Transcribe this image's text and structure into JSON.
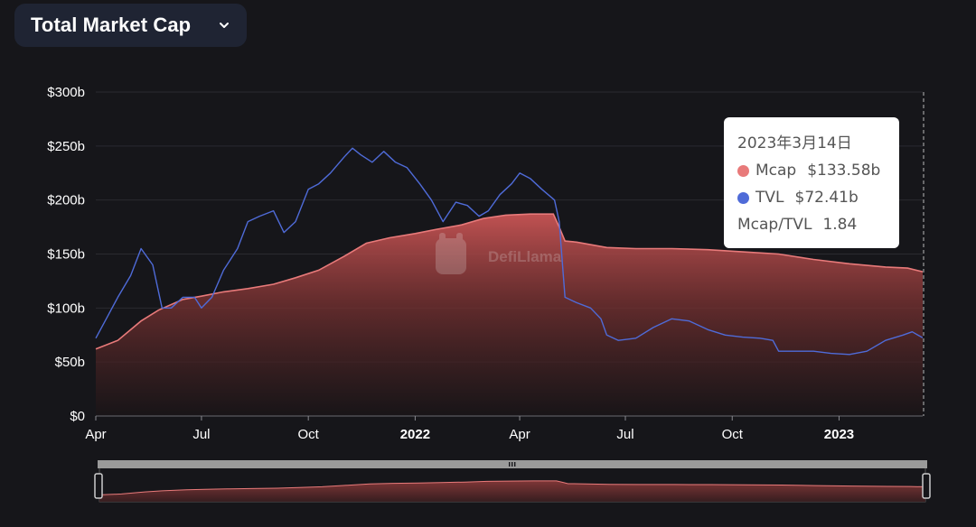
{
  "header": {
    "selector_label": "Total Market Cap",
    "selector_icon": "chevron-down-icon"
  },
  "colors": {
    "background": "#16161a",
    "mcap": "#e87a7a",
    "tvl": "#4f6bd8",
    "grid": "#2a2a30",
    "axis_text": "#ffffff"
  },
  "watermark": "DefiLlama",
  "tooltip": {
    "date": "2023年3月14日",
    "items": [
      {
        "label": "Mcap",
        "value": "$133.58b",
        "color": "#e87a7a"
      },
      {
        "label": "TVL",
        "value": "$72.41b",
        "color": "#4f6bd8"
      }
    ],
    "ratio_label": "Mcap/TVL",
    "ratio_value": "1.84"
  },
  "chart_data": {
    "type": "line",
    "title": "Total Market Cap",
    "y_unit": "$ billions",
    "ylim": [
      0,
      300
    ],
    "y_ticks": [
      0,
      50,
      100,
      150,
      200,
      250,
      300
    ],
    "y_tick_labels": [
      "$0",
      "$50b",
      "$100b",
      "$150b",
      "$200b",
      "$250b",
      "$300b"
    ],
    "xlim": [
      "2021-04-01",
      "2023-03-14"
    ],
    "x_ticks": [
      {
        "date": "2021-04-01",
        "label": "Apr",
        "bold": false
      },
      {
        "date": "2021-07-01",
        "label": "Jul",
        "bold": false
      },
      {
        "date": "2021-10-01",
        "label": "Oct",
        "bold": false
      },
      {
        "date": "2022-01-01",
        "label": "2022",
        "bold": true
      },
      {
        "date": "2022-04-01",
        "label": "Apr",
        "bold": false
      },
      {
        "date": "2022-07-01",
        "label": "Jul",
        "bold": false
      },
      {
        "date": "2022-10-01",
        "label": "Oct",
        "bold": false
      },
      {
        "date": "2023-01-01",
        "label": "2023",
        "bold": true
      }
    ],
    "grid": true,
    "legend": "tooltip",
    "series": [
      {
        "name": "Mcap",
        "type": "area",
        "color": "#e87a7a",
        "x": [
          "2021-04-01",
          "2021-04-20",
          "2021-05-10",
          "2021-05-25",
          "2021-06-15",
          "2021-07-01",
          "2021-07-20",
          "2021-08-10",
          "2021-09-01",
          "2021-09-20",
          "2021-10-10",
          "2021-11-01",
          "2021-11-20",
          "2021-12-10",
          "2022-01-01",
          "2022-01-20",
          "2022-02-10",
          "2022-03-01",
          "2022-03-20",
          "2022-04-10",
          "2022-04-30",
          "2022-05-05",
          "2022-05-10",
          "2022-05-20",
          "2022-06-15",
          "2022-07-10",
          "2022-08-10",
          "2022-09-10",
          "2022-10-10",
          "2022-11-10",
          "2022-12-10",
          "2023-01-10",
          "2023-02-10",
          "2023-03-01",
          "2023-03-14"
        ],
        "y": [
          62,
          70,
          88,
          98,
          108,
          111,
          115,
          118,
          122,
          128,
          135,
          148,
          160,
          165,
          169,
          173,
          177,
          183,
          186,
          187,
          187,
          175,
          162,
          161,
          156,
          155,
          155,
          154,
          152,
          150,
          145,
          141,
          138,
          137,
          133.58
        ]
      },
      {
        "name": "TVL",
        "type": "line",
        "color": "#4f6bd8",
        "x": [
          "2021-04-01",
          "2021-04-10",
          "2021-04-20",
          "2021-05-01",
          "2021-05-10",
          "2021-05-20",
          "2021-05-28",
          "2021-06-05",
          "2021-06-15",
          "2021-06-25",
          "2021-07-01",
          "2021-07-10",
          "2021-07-20",
          "2021-08-01",
          "2021-08-10",
          "2021-08-20",
          "2021-09-01",
          "2021-09-10",
          "2021-09-20",
          "2021-10-01",
          "2021-10-10",
          "2021-10-20",
          "2021-11-01",
          "2021-11-08",
          "2021-11-15",
          "2021-11-25",
          "2021-12-05",
          "2021-12-15",
          "2021-12-25",
          "2022-01-05",
          "2022-01-15",
          "2022-01-25",
          "2022-02-05",
          "2022-02-15",
          "2022-02-25",
          "2022-03-05",
          "2022-03-15",
          "2022-03-25",
          "2022-04-01",
          "2022-04-10",
          "2022-04-20",
          "2022-05-01",
          "2022-05-05",
          "2022-05-10",
          "2022-05-20",
          "2022-06-01",
          "2022-06-10",
          "2022-06-15",
          "2022-06-25",
          "2022-07-10",
          "2022-07-25",
          "2022-08-10",
          "2022-08-25",
          "2022-09-10",
          "2022-09-25",
          "2022-10-10",
          "2022-10-25",
          "2022-11-05",
          "2022-11-10",
          "2022-11-25",
          "2022-12-10",
          "2022-12-25",
          "2023-01-10",
          "2023-01-25",
          "2023-02-10",
          "2023-02-25",
          "2023-03-05",
          "2023-03-14"
        ],
        "y": [
          72,
          90,
          110,
          130,
          155,
          140,
          100,
          100,
          110,
          110,
          100,
          110,
          135,
          155,
          180,
          185,
          190,
          170,
          180,
          210,
          215,
          225,
          240,
          248,
          242,
          235,
          245,
          235,
          230,
          215,
          200,
          180,
          198,
          195,
          185,
          190,
          205,
          215,
          225,
          220,
          210,
          200,
          180,
          110,
          105,
          100,
          90,
          75,
          70,
          72,
          82,
          90,
          88,
          80,
          75,
          73,
          72,
          70,
          60,
          60,
          60,
          58,
          57,
          60,
          70,
          75,
          78,
          72.41
        ]
      }
    ]
  }
}
